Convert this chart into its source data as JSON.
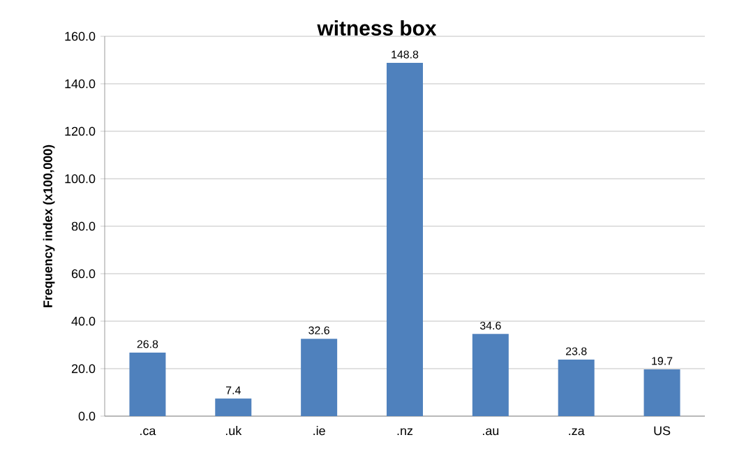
{
  "chart_data": {
    "type": "bar",
    "title": "witness box",
    "ylabel": "Frequency index (x100,000)",
    "categories": [
      ".ca",
      ".uk",
      ".ie",
      ".nz",
      ".au",
      ".za",
      "US"
    ],
    "values": [
      26.8,
      7.4,
      32.6,
      148.8,
      34.6,
      23.8,
      19.7
    ],
    "value_labels": [
      "26.8",
      "7.4",
      "32.6",
      "148.8",
      "34.6",
      "23.8",
      "19.7"
    ],
    "color": "#4f81bd",
    "ylim": [
      0,
      160
    ],
    "yticks": [
      {
        "value": 0,
        "label": "0.0"
      },
      {
        "value": 20,
        "label": "20.0"
      },
      {
        "value": 40,
        "label": "40.0"
      },
      {
        "value": 60,
        "label": "60.0"
      },
      {
        "value": 80,
        "label": "80.0"
      },
      {
        "value": 100,
        "label": "100.0"
      },
      {
        "value": 120,
        "label": "120.0"
      },
      {
        "value": 140,
        "label": "140.0"
      },
      {
        "value": 160,
        "label": "160.0"
      }
    ],
    "grid": "y"
  }
}
